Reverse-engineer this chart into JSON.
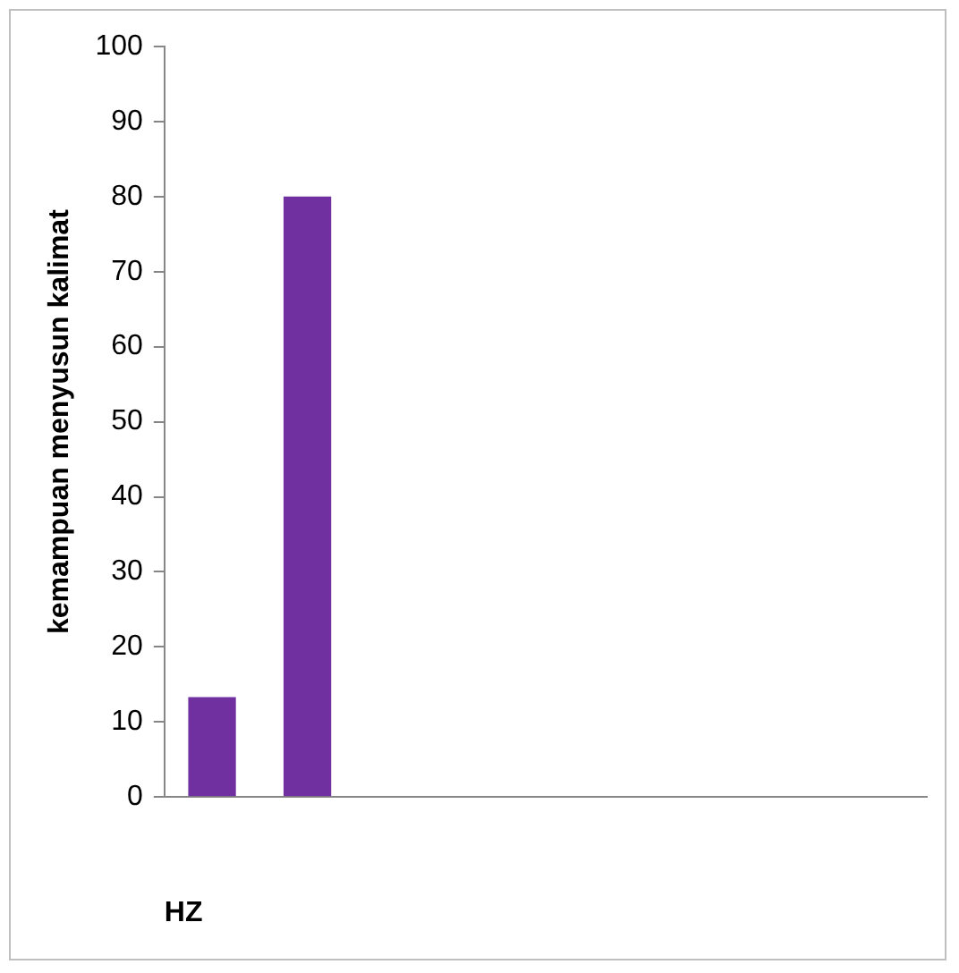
{
  "chart_data": {
    "type": "bar",
    "xlabel": "HZ",
    "ylabel": "kemampuan menyusun kalimat",
    "categories": [
      null,
      null,
      null,
      null,
      null,
      null,
      null,
      null
    ],
    "values": [
      13.3,
      80,
      null,
      null,
      null,
      null,
      null,
      null
    ],
    "color": "#7030a0",
    "ylim": [
      0,
      100
    ],
    "yticks": [
      0,
      10,
      20,
      30,
      40,
      50,
      60,
      70,
      80,
      90,
      100
    ],
    "grid": false,
    "legend": false
  }
}
